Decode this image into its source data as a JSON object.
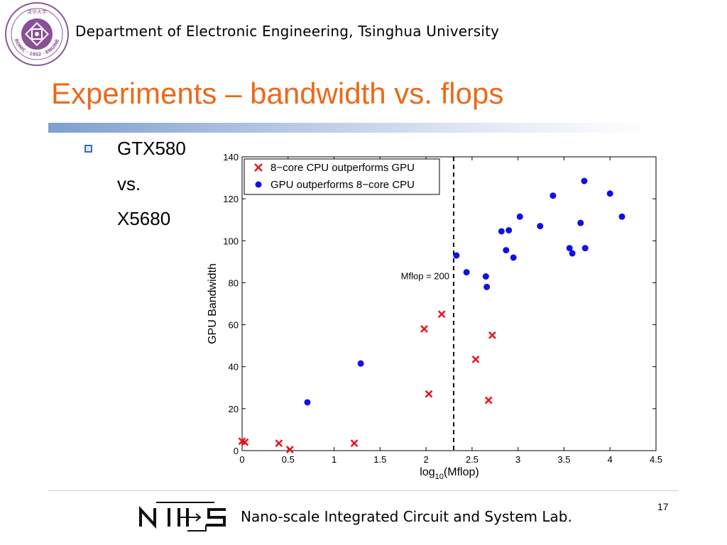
{
  "header": {
    "institution": "Department of Electronic Engineering, Tsinghua University",
    "logo_text": "ELECTRONIC · 1952 · ENGINEERING",
    "logo_cjk": "清华大学"
  },
  "slide": {
    "title": "Experiments – bandwidth vs. flops",
    "bullet_lines": [
      "GTX580",
      "vs.",
      "X5680"
    ]
  },
  "chart_data": {
    "type": "scatter",
    "xlabel_main": "log",
    "xlabel_sub": "10",
    "xlabel_tail": "(Mflop)",
    "ylabel": "GPU Bandwidth",
    "xlim": [
      0,
      4.5
    ],
    "ylim": [
      0,
      140
    ],
    "xticks": [
      0,
      0.5,
      1,
      1.5,
      2,
      2.5,
      3,
      3.5,
      4,
      4.5
    ],
    "xtick_labels": [
      "0",
      "0.5",
      "1",
      "1.5",
      "2",
      "2.5",
      "3",
      "3.5",
      "4",
      "4.5"
    ],
    "yticks": [
      0,
      20,
      40,
      60,
      80,
      100,
      120,
      140
    ],
    "ytick_labels": [
      "0",
      "20",
      "40",
      "60",
      "80",
      "100",
      "120",
      "140"
    ],
    "legend_position": "top-left",
    "threshold": {
      "x": 2.3,
      "label": "Mflop = 200"
    },
    "series": [
      {
        "name": "8−core CPU outperforms GPU",
        "marker": "x",
        "color": "#e8141c",
        "points": [
          [
            0.0,
            4.5
          ],
          [
            0.03,
            4.0
          ],
          [
            0.4,
            3.5
          ],
          [
            0.52,
            0.5
          ],
          [
            1.22,
            3.5
          ],
          [
            1.98,
            58
          ],
          [
            2.03,
            27
          ],
          [
            2.17,
            65
          ],
          [
            2.54,
            43.5
          ],
          [
            2.68,
            24
          ],
          [
            2.72,
            55
          ]
        ]
      },
      {
        "name": "GPU outperforms 8−core CPU",
        "marker": "o",
        "color": "#1010e6",
        "points": [
          [
            0.71,
            23
          ],
          [
            1.29,
            41.5
          ],
          [
            2.33,
            93
          ],
          [
            2.44,
            85
          ],
          [
            2.65,
            83
          ],
          [
            2.66,
            78
          ],
          [
            2.82,
            104.5
          ],
          [
            2.87,
            95.5
          ],
          [
            2.9,
            105
          ],
          [
            2.95,
            92
          ],
          [
            3.02,
            111.5
          ],
          [
            3.24,
            107
          ],
          [
            3.38,
            121.5
          ],
          [
            3.56,
            96.5
          ],
          [
            3.59,
            94
          ],
          [
            3.68,
            108.5
          ],
          [
            3.72,
            128.5
          ],
          [
            3.73,
            96.5
          ],
          [
            4.0,
            122.5
          ],
          [
            4.13,
            111.5
          ]
        ]
      }
    ]
  },
  "footer": {
    "lab_name": "Nano-scale Integrated Circuit and System Lab.",
    "page_number": "17"
  }
}
